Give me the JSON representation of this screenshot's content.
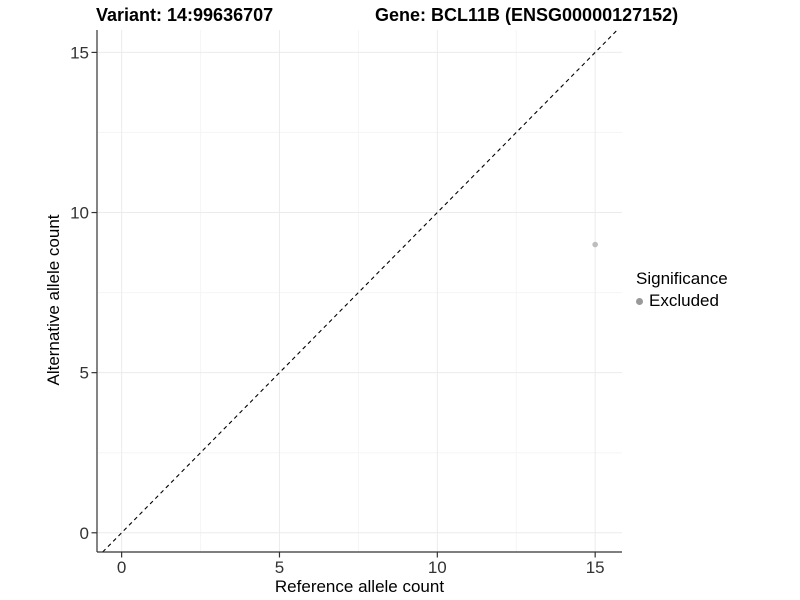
{
  "chart_data": {
    "type": "scatter",
    "title_left": "Variant: 14:99636707",
    "title_right": "Gene: BCL11B (ENSG00000127152)",
    "xlabel": "Reference allele count",
    "ylabel": "Alternative allele count",
    "xlim": [
      -0.78,
      15.85
    ],
    "ylim": [
      -0.6,
      15.7
    ],
    "xticks": [
      0,
      5,
      10,
      15
    ],
    "yticks": [
      0,
      5,
      10,
      15
    ],
    "minor_xticks": [
      2.5,
      7.5,
      12.5
    ],
    "minor_yticks": [
      2.5,
      7.5,
      12.5
    ],
    "grid": "major+minor",
    "points": [
      {
        "x": 15,
        "y": 9,
        "significance": "Excluded"
      }
    ],
    "identity_line": {
      "equation": "y = x",
      "style": "dashed"
    },
    "legend": {
      "title": "Significance",
      "position": "right",
      "items": [
        {
          "label": "Excluded",
          "color": "#999999"
        }
      ]
    },
    "style": {
      "point_color": "#bdbdbd",
      "point_radius": 2.8,
      "grid_major_color": "#ebebeb",
      "grid_minor_color": "#f5f5f5",
      "axis_color": "#333333",
      "tick_label_color": "#333333",
      "dash_color": "#000000",
      "background": "#ffffff"
    }
  }
}
